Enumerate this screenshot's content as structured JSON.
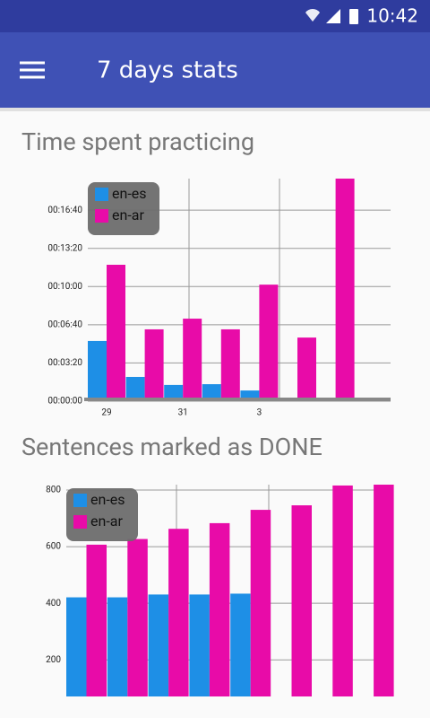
{
  "status_bar": {
    "time": "10:42"
  },
  "app_bar": {
    "title": "7 days stats"
  },
  "chart_data": [
    {
      "type": "bar",
      "title": "Time spent practicing",
      "categories": [
        "29",
        null,
        "31",
        null,
        "3",
        null,
        null
      ],
      "series": [
        {
          "name": "en-es",
          "color": "#1e8fe6",
          "values": [
            315,
            127,
            85,
            89,
            56,
            null,
            null
          ]
        },
        {
          "name": "en-ar",
          "color": "#e80ba8",
          "values": [
            714,
            376,
            432,
            376,
            610,
            333,
            1165
          ]
        }
      ],
      "ylim": [
        0,
        1165
      ],
      "yticks": [
        {
          "value": 0,
          "label": "00:00:00"
        },
        {
          "value": 200,
          "label": "00:03:20"
        },
        {
          "value": 400,
          "label": "00:06:40"
        },
        {
          "value": 600,
          "label": "00:10:00"
        },
        {
          "value": 800,
          "label": "00:13:20"
        },
        {
          "value": 1000,
          "label": "00:16:40"
        }
      ],
      "grid": true,
      "legend": "top-left"
    },
    {
      "type": "bar",
      "title": "Sentences marked as DONE",
      "categories": [
        null,
        null,
        null,
        null,
        null,
        null,
        null,
        null
      ],
      "series": [
        {
          "name": "en-es",
          "color": "#1e8fe6",
          "values": [
            421,
            421,
            431,
            431,
            434,
            null,
            null,
            null
          ]
        },
        {
          "name": "en-ar",
          "color": "#e80ba8",
          "values": [
            607,
            627,
            663,
            683,
            730,
            746,
            816,
            819
          ]
        }
      ],
      "ylim": [
        36,
        819
      ],
      "yticks": [
        200,
        400,
        600,
        800
      ],
      "grid": true,
      "legend": "top-left"
    }
  ]
}
